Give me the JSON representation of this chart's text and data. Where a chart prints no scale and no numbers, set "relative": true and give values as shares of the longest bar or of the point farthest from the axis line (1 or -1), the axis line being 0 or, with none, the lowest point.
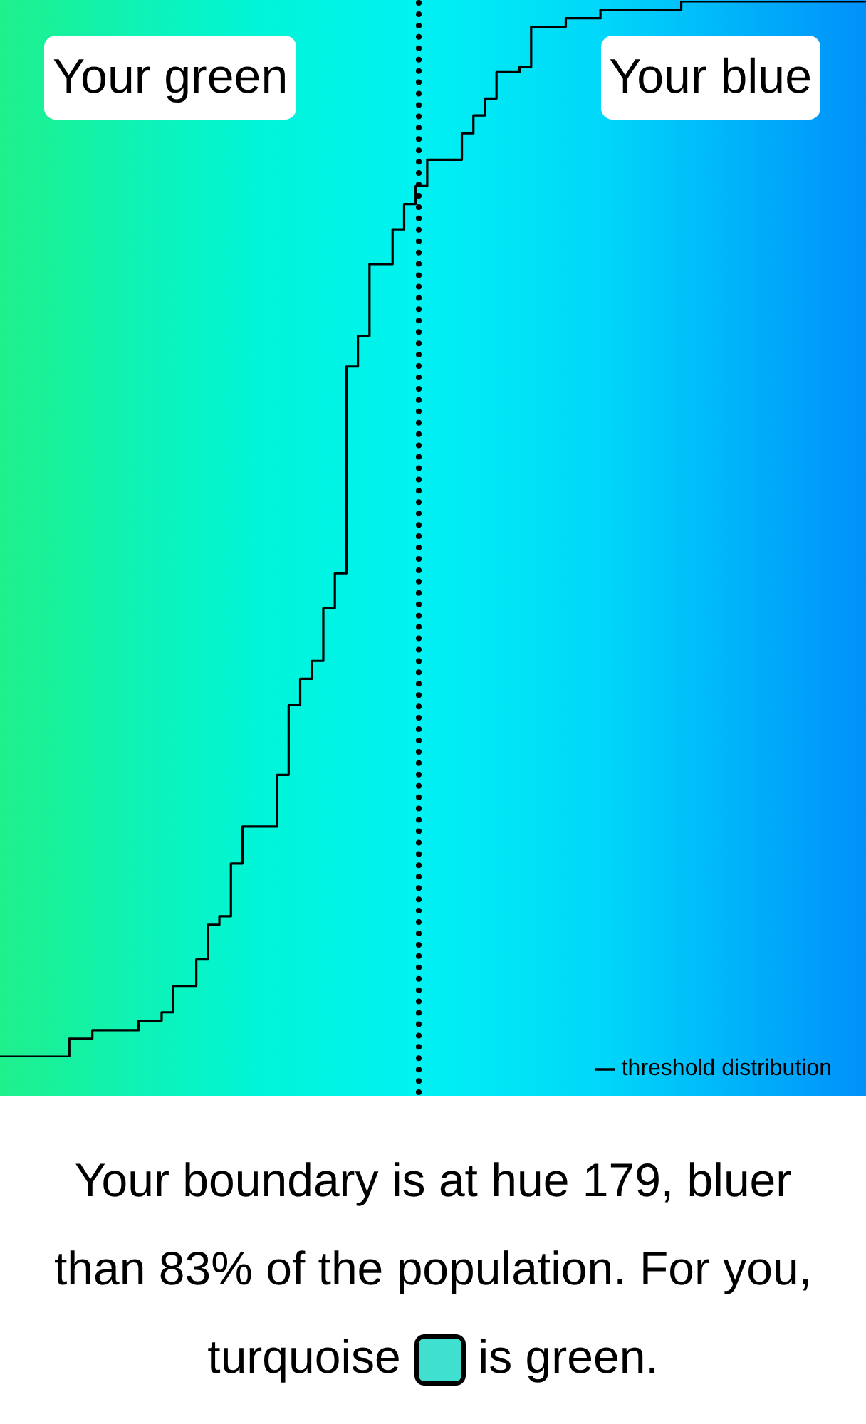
{
  "chart_data": {
    "type": "step",
    "relative": true,
    "categories": [
      null,
      null,
      null,
      null,
      null,
      null,
      null,
      null,
      null,
      null,
      null,
      null,
      null,
      null,
      null,
      null,
      null,
      null,
      null,
      null,
      null,
      null,
      null,
      null,
      null,
      null,
      null,
      null,
      null,
      null,
      null,
      null,
      null,
      null,
      null,
      null,
      null,
      null,
      null,
      null,
      null,
      null,
      null,
      null,
      null,
      null,
      null,
      null,
      null,
      null,
      null,
      null,
      null,
      null,
      null,
      null,
      null,
      null,
      null,
      null,
      null,
      null,
      null,
      null,
      null,
      null,
      null,
      null,
      null,
      null,
      null,
      null,
      null,
      null,
      null,
      null
    ],
    "series": [
      {
        "name": "threshold distribution",
        "color": "#000000",
        "values": [
          0,
          0,
          0,
          0,
          0,
          0,
          0.017,
          0.017,
          0.025,
          0.025,
          0.025,
          0.025,
          0.034,
          0.034,
          0.042,
          0.067,
          0.067,
          0.092,
          0.125,
          0.133,
          0.183,
          0.218,
          0.218,
          0.218,
          0.267,
          0.333,
          0.358,
          0.375,
          0.425,
          0.458,
          0.654,
          0.683,
          0.751,
          0.751,
          0.784,
          0.808,
          0.825,
          0.85,
          0.85,
          0.85,
          0.875,
          0.892,
          0.908,
          0.933,
          0.933,
          0.938,
          0.976,
          0.976,
          0.976,
          0.984,
          0.984,
          0.984,
          0.992,
          0.992,
          0.992,
          0.992,
          0.992,
          0.992,
          0.992,
          1,
          1,
          1,
          1,
          1,
          1,
          1,
          1,
          1,
          1,
          1,
          1,
          1,
          1,
          1,
          1,
          1
        ]
      }
    ],
    "annotations": [
      "Your green",
      "Your blue",
      "Your boundary is at hue 179, bluer than 83% of the population. For you, turquoise",
      "is green."
    ],
    "legend": "bottom right",
    "marker": "none",
    "line_style": "solid",
    "tick_labels": false
  }
}
